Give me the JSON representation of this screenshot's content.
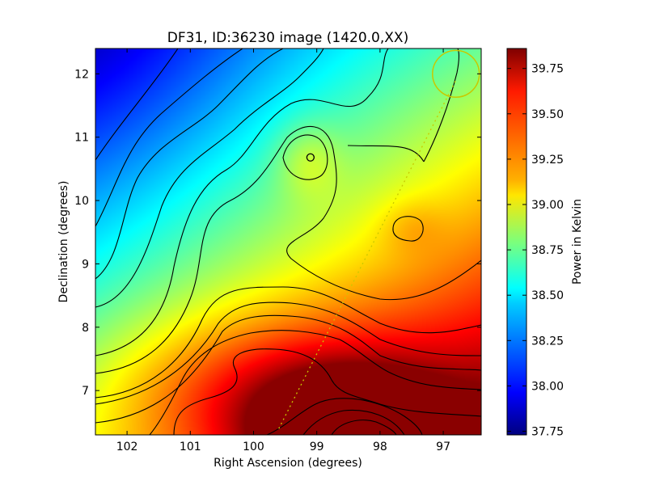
{
  "chart_data": {
    "type": "heatmap",
    "title": "DF31, ID:36230 image (1420.0,XX)",
    "xlabel": "Right Ascension (degrees)",
    "ylabel": "Declination (degrees)",
    "xlim": [
      102.5,
      96.4
    ],
    "ylim": [
      6.3,
      12.4
    ],
    "x_ticks": [
      102,
      101,
      100,
      99,
      98,
      97
    ],
    "y_ticks": [
      7,
      8,
      9,
      10,
      11,
      12
    ],
    "colorbar": {
      "label": "Power in Kelvin",
      "range": [
        37.73,
        39.86
      ],
      "colormap": "jet",
      "ticks": [
        "37.75",
        "38.00",
        "38.25",
        "38.50",
        "38.75",
        "39.00",
        "39.25",
        "39.50",
        "39.75"
      ]
    },
    "contour_color": "#000000",
    "annotations": [
      {
        "type": "circle",
        "ra": 96.8,
        "dec": 12.0,
        "radius_deg": 0.37,
        "color": "#c8c800"
      },
      {
        "type": "dotted-line",
        "points": [
          [
            99.6,
            6.4
          ],
          [
            96.8,
            11.9
          ]
        ],
        "color": "#c8c800"
      },
      {
        "type": "small-circle",
        "ra": 99.1,
        "dec": 10.68,
        "color": "#000000"
      }
    ]
  }
}
